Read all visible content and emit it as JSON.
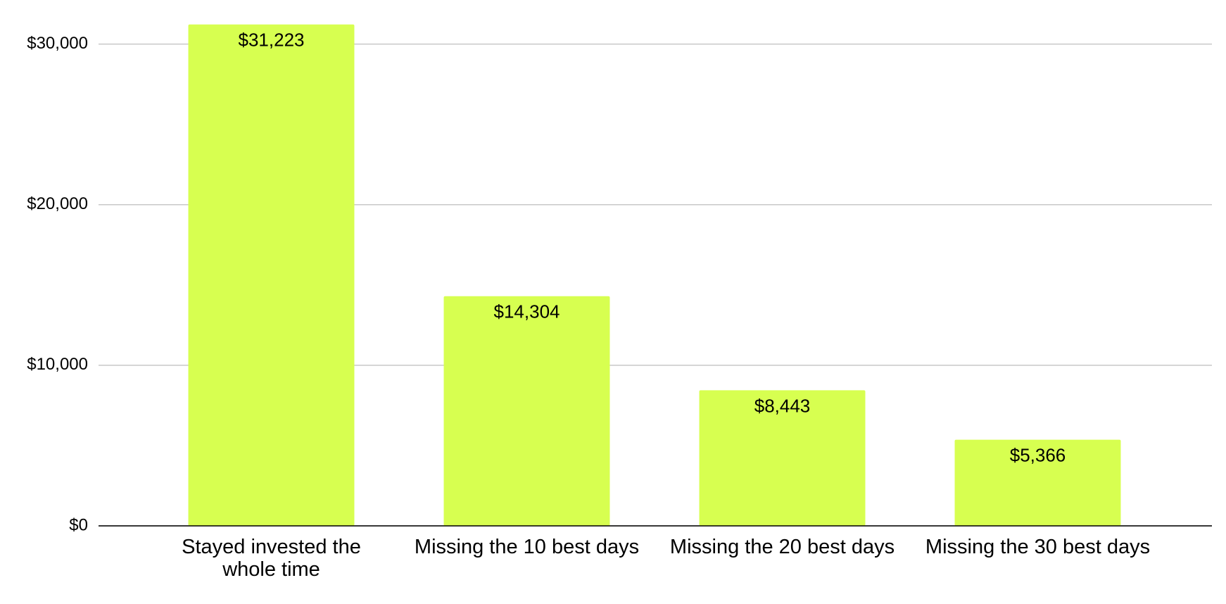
{
  "chart_data": {
    "type": "bar",
    "categories": [
      "Stayed invested the whole time",
      "Missing the 10 best days",
      "Missing the 20 best days",
      "Missing the 30 best days"
    ],
    "values": [
      31223,
      14304,
      8443,
      5366
    ],
    "value_labels": [
      "$31,223",
      "$14,304",
      "$8,443",
      "$5,366"
    ],
    "color": "#d7ff50",
    "ylim": [
      0,
      32000
    ],
    "yticks": [
      {
        "value": 0,
        "label": "$0"
      },
      {
        "value": 10000,
        "label": "$10,000"
      },
      {
        "value": 20000,
        "label": "$20,000"
      },
      {
        "value": 30000,
        "label": "$30,000"
      }
    ],
    "grid": true
  }
}
